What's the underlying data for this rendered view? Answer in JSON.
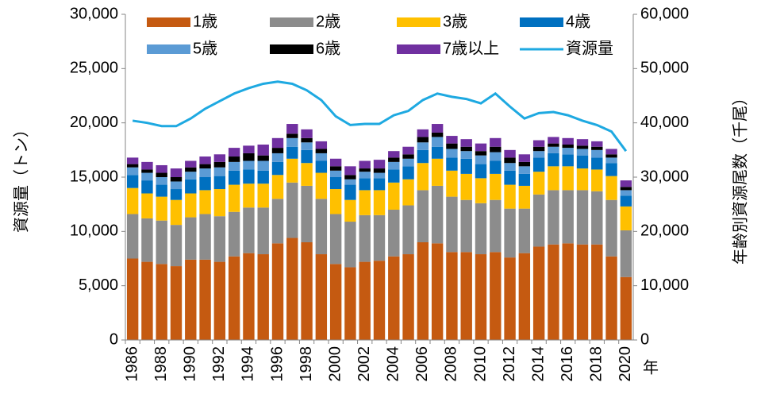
{
  "chart_data": {
    "type": "bar",
    "stacked": true,
    "ylabel": "資源量（トン）",
    "y2label": "年齢別資源尾数（千尾）",
    "xlabel": "年",
    "categories": [
      "1986",
      null,
      "1988",
      null,
      "1990",
      null,
      "1992",
      null,
      "1994",
      null,
      "1996",
      null,
      "1998",
      null,
      "2000",
      null,
      "2002",
      null,
      "2004",
      null,
      "2006",
      null,
      "2008",
      null,
      "2010",
      null,
      "2012",
      null,
      "2014",
      null,
      "2016",
      null,
      "2018",
      null,
      "2020"
    ],
    "ylim": [
      0,
      30000
    ],
    "yticks": [
      0,
      {
        "value": 5000,
        "label": "5,000"
      },
      {
        "value": 10000,
        "label": "10,000"
      },
      {
        "value": 15000,
        "label": "15,000"
      },
      {
        "value": 20000,
        "label": "20,000"
      },
      {
        "value": 25000,
        "label": "25,000"
      },
      {
        "value": 30000,
        "label": "30,000"
      }
    ],
    "y2lim": [
      0,
      60000
    ],
    "y2ticks": [
      0,
      {
        "value": 10000,
        "label": "10,000"
      },
      {
        "value": 20000,
        "label": "20,000"
      },
      {
        "value": 30000,
        "label": "30,000"
      },
      {
        "value": 40000,
        "label": "40,000"
      },
      {
        "value": 50000,
        "label": "50,000"
      },
      {
        "value": 60000,
        "label": "60,000"
      }
    ],
    "series": [
      {
        "name": "1歳",
        "color": "#c55a11",
        "axis": "y2",
        "values": [
          15000,
          14400,
          14000,
          13600,
          14800,
          14800,
          14400,
          15400,
          16000,
          15800,
          17800,
          18800,
          18000,
          15800,
          14000,
          13400,
          14400,
          14600,
          15400,
          15800,
          18000,
          17800,
          16200,
          16200,
          15800,
          16200,
          15200,
          16000,
          17200,
          17600,
          17800,
          17600,
          17600,
          15400,
          11600
        ]
      },
      {
        "name": "2歳",
        "color": "#8c8c8c",
        "axis": "y2",
        "values": [
          8200,
          8000,
          8000,
          7600,
          7800,
          8400,
          8400,
          8200,
          8400,
          8600,
          8200,
          10200,
          10400,
          10200,
          9200,
          8400,
          8600,
          8400,
          8600,
          9000,
          9600,
          10600,
          10200,
          9600,
          9400,
          9600,
          9000,
          8200,
          9600,
          10000,
          9800,
          10000,
          9800,
          10400,
          8600
        ]
      },
      {
        "name": "3歳",
        "color": "#ffc000",
        "axis": "y2",
        "values": [
          4800,
          4600,
          4400,
          4600,
          4400,
          4400,
          5000,
          5000,
          4400,
          4400,
          4400,
          4400,
          4200,
          4800,
          4600,
          4000,
          4600,
          4600,
          5000,
          4800,
          5000,
          5000,
          4800,
          4800,
          4600,
          4800,
          4400,
          4200,
          4200,
          4400,
          4400,
          4000,
          4000,
          4400,
          4400
        ]
      },
      {
        "name": "4歳",
        "color": "#0070c0",
        "axis": "y2",
        "values": [
          2400,
          2400,
          2200,
          2000,
          2600,
          2400,
          2400,
          2600,
          2600,
          2400,
          2400,
          2200,
          2400,
          2200,
          2200,
          2800,
          2200,
          2200,
          2400,
          2400,
          2400,
          2200,
          2400,
          2800,
          2600,
          2400,
          2600,
          2200,
          2600,
          2400,
          2200,
          2400,
          2200,
          2400,
          2000
        ]
      },
      {
        "name": "5歳",
        "color": "#5b9bd5",
        "axis": "y2",
        "values": [
          1400,
          1400,
          1400,
          1400,
          1400,
          1600,
          1600,
          1600,
          1600,
          1800,
          1600,
          1600,
          1400,
          1400,
          1200,
          1000,
          1200,
          1000,
          1400,
          1400,
          1400,
          1800,
          1600,
          1400,
          1600,
          1600,
          1400,
          1400,
          1200,
          1200,
          1200,
          1200,
          1400,
          1000,
          1000
        ]
      },
      {
        "name": "6歳",
        "color": "#000000",
        "axis": "y2",
        "values": [
          600,
          600,
          800,
          800,
          800,
          800,
          1000,
          1000,
          1400,
          1000,
          1000,
          800,
          800,
          800,
          800,
          800,
          600,
          800,
          800,
          800,
          1000,
          800,
          1000,
          800,
          800,
          1000,
          1000,
          800,
          800,
          600,
          600,
          600,
          600,
          600,
          600
        ]
      },
      {
        "name": "7歳以上",
        "color": "#7030a0",
        "axis": "y2",
        "values": [
          1200,
          1400,
          1400,
          1600,
          1200,
          1400,
          1400,
          1600,
          1400,
          2000,
          1800,
          1800,
          1600,
          1400,
          1400,
          1600,
          1400,
          1600,
          1200,
          1400,
          1400,
          1600,
          1400,
          1400,
          1400,
          1600,
          1400,
          1400,
          1200,
          1200,
          1200,
          1200,
          1000,
          1000,
          1200
        ]
      },
      {
        "name": "資源量",
        "color": "#1ea9e1",
        "type": "line",
        "values": [
          20200,
          20000,
          19700,
          19700,
          20400,
          21300,
          22000,
          22700,
          23200,
          23600,
          23800,
          23600,
          23000,
          22100,
          20600,
          19800,
          19900,
          19900,
          20700,
          21100,
          22100,
          22700,
          22400,
          22200,
          21800,
          22700,
          21500,
          20400,
          20900,
          21000,
          20700,
          20200,
          19800,
          19200,
          17400
        ]
      }
    ]
  }
}
